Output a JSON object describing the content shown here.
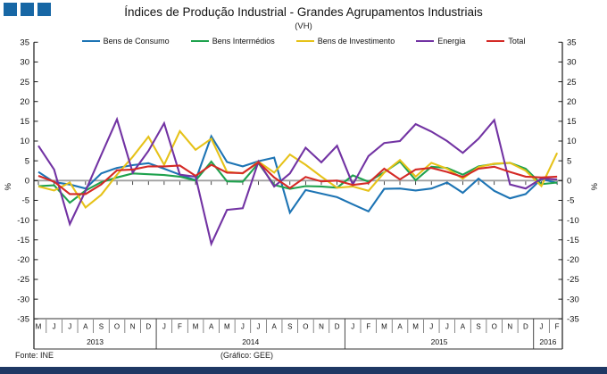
{
  "header": {
    "title": "Índices de Produção Industrial - Grandes Agrupamentos Industriais",
    "subtitle": "(VH)"
  },
  "footer": {
    "source": "Fonte: INE",
    "credit": "(Gráfico: GEE)"
  },
  "colors": {
    "logo_blue": "#1767a5",
    "bottom_bar_navy": "#1f3864",
    "zero_line_gray": "#a0a0a0",
    "axis_black": "#1a1a1a"
  },
  "chart_data": {
    "type": "line",
    "title": "Índices de Produção Industrial - Grandes Agrupamentos Industriais",
    "subtitle": "(VH)",
    "ylabel_left": "%",
    "ylabel_right": "%",
    "ylim": [
      -35,
      35
    ],
    "y_tick_step": 5,
    "grid": false,
    "legend_position": "top",
    "x_months": [
      "M",
      "J",
      "J",
      "A",
      "S",
      "O",
      "N",
      "D",
      "J",
      "F",
      "M",
      "A",
      "M",
      "J",
      "J",
      "A",
      "S",
      "O",
      "N",
      "D",
      "J",
      "F",
      "M",
      "A",
      "M",
      "J",
      "J",
      "A",
      "S",
      "O",
      "N",
      "D",
      "J",
      "F"
    ],
    "year_groups": [
      {
        "label": "2013",
        "start": 0,
        "end": 7
      },
      {
        "label": "2014",
        "start": 8,
        "end": 19
      },
      {
        "label": "2015",
        "start": 20,
        "end": 31
      },
      {
        "label": "2016",
        "start": 32,
        "end": 33
      }
    ],
    "series": [
      {
        "name": "Bens de Consumo",
        "color": "#1d74b4",
        "values": [
          2.2,
          -0.4,
          -1.0,
          -2.0,
          1.8,
          3.2,
          3.9,
          4.4,
          3.0,
          1.5,
          0.1,
          11.2,
          4.7,
          3.6,
          4.9,
          5.8,
          -8.1,
          -2.4,
          -3.3,
          -4.2,
          -6.0,
          -7.8,
          -2.1,
          -2.0,
          -2.5,
          -2.0,
          -0.5,
          -3.1,
          0.5,
          -2.6,
          -4.5,
          -3.4,
          0.4,
          -0.6
        ]
      },
      {
        "name": "Bens Intermédios",
        "color": "#1fa24e",
        "values": [
          -1.4,
          -1.2,
          -5.6,
          -2.5,
          -0.4,
          0.8,
          1.8,
          1.6,
          1.4,
          1.0,
          0.0,
          4.8,
          -0.2,
          -0.3,
          4.4,
          -1.1,
          -2.1,
          -1.4,
          -1.5,
          -1.8,
          1.3,
          -0.3,
          2.1,
          4.8,
          0.1,
          3.5,
          3.2,
          1.5,
          3.6,
          4.2,
          4.5,
          3.0,
          -0.9,
          -0.5
        ]
      },
      {
        "name": "Bens de Investimento",
        "color": "#e6c219",
        "values": [
          -1.5,
          -2.5,
          -0.5,
          -6.8,
          -3.6,
          1.5,
          6.0,
          11.1,
          4.0,
          12.5,
          7.8,
          10.6,
          2.2,
          1.8,
          4.8,
          2.0,
          6.6,
          4.0,
          1.0,
          -1.8,
          -1.5,
          -2.6,
          2.0,
          5.2,
          1.0,
          4.5,
          3.0,
          0.5,
          3.4,
          4.3,
          4.5,
          2.5,
          -1.4,
          7.0
        ]
      },
      {
        "name": "Energia",
        "color": "#7233a3",
        "values": [
          8.8,
          2.8,
          -11.0,
          -2.6,
          6.5,
          15.5,
          2.0,
          7.5,
          14.5,
          1.5,
          1.0,
          -16.0,
          -7.4,
          -7.0,
          4.8,
          -1.5,
          1.8,
          8.3,
          4.6,
          8.8,
          -1.0,
          6.2,
          9.5,
          10.0,
          14.3,
          12.4,
          10.0,
          7.0,
          10.6,
          15.3,
          -1.0,
          -2.0,
          0.5,
          0.3
        ]
      },
      {
        "name": "Total",
        "color": "#d42a26",
        "values": [
          1.2,
          -0.3,
          -3.4,
          -3.4,
          -1.0,
          2.6,
          2.8,
          3.6,
          3.6,
          3.8,
          1.2,
          4.0,
          2.0,
          1.9,
          4.6,
          0.8,
          -1.9,
          0.9,
          -0.2,
          0.0,
          -1.1,
          -0.6,
          3.0,
          0.3,
          2.8,
          3.2,
          2.2,
          0.9,
          3.0,
          3.5,
          2.2,
          1.0,
          0.8,
          1.0
        ]
      }
    ]
  }
}
